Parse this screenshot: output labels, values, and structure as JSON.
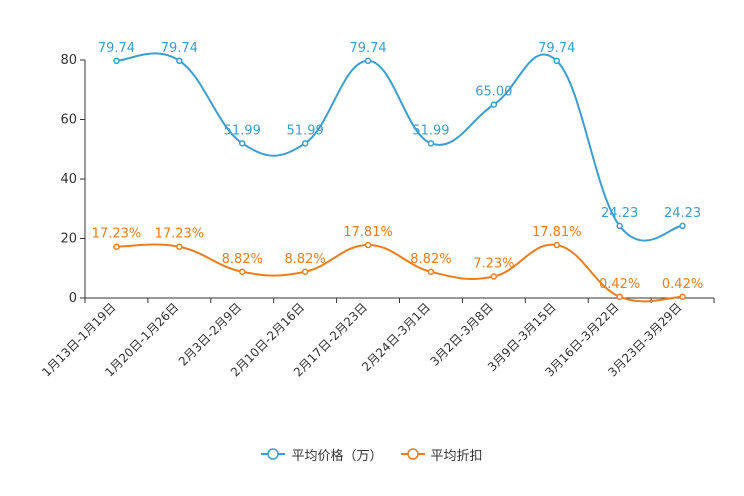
{
  "chart_data": {
    "type": "line",
    "smooth": true,
    "categories": [
      "1月13日-1月19日",
      "1月20日-1月26日",
      "2月3日-2月9日",
      "2月10日-2月16日",
      "2月17日-2月23日",
      "2月24日-3月1日",
      "3月2日-3月8日",
      "3月9日-3月15日",
      "3月16日-3月22日",
      "3月23日-3月29日"
    ],
    "ylim": [
      0,
      80
    ],
    "yticks": [
      0,
      20,
      40,
      60,
      80
    ],
    "grid": false,
    "legend_position": "bottom-center",
    "series": [
      {
        "name": "平均价格（万）",
        "color": "#3a9fd0",
        "values": [
          79.74,
          79.74,
          51.99,
          51.99,
          79.74,
          51.99,
          65.0,
          79.74,
          24.23,
          24.23
        ],
        "labels": [
          "79.74",
          "79.74",
          "51.99",
          "51.99",
          "79.74",
          "51.99",
          "65.00",
          "79.74",
          "24.23",
          "24.23"
        ]
      },
      {
        "name": "平均折扣",
        "color": "#f07c1a",
        "values": [
          17.23,
          17.23,
          8.82,
          8.82,
          17.81,
          8.82,
          7.23,
          17.81,
          0.42,
          0.42
        ],
        "labels": [
          "17.23%",
          "17.23%",
          "8.82%",
          "8.82%",
          "17.81%",
          "8.82%",
          "7.23%",
          "17.81%",
          "0.42%",
          "0.42%"
        ]
      }
    ]
  }
}
